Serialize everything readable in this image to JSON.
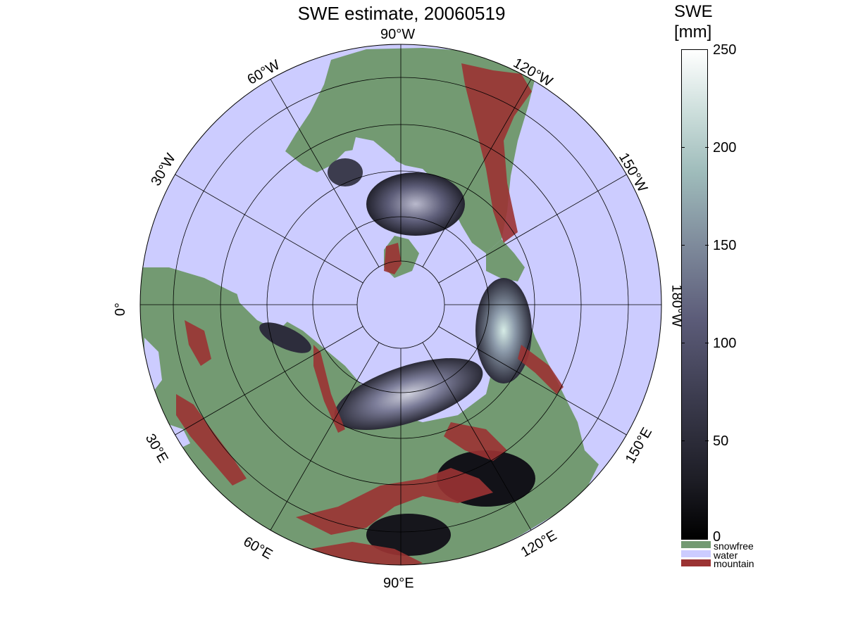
{
  "title": "SWE estimate, 20060519",
  "colorbar": {
    "title_line1": "SWE",
    "title_line2": "[mm]",
    "ticks": [
      "250",
      "200",
      "150",
      "100",
      "50",
      "0"
    ],
    "range": [
      0,
      250
    ],
    "categories": [
      {
        "label": "snowfree",
        "color": "#739a72"
      },
      {
        "label": "water",
        "color": "#ccccff"
      },
      {
        "label": "mountain",
        "color": "#9b3333"
      }
    ]
  },
  "map": {
    "projection": "north polar stereographic",
    "land_color": "#739a72",
    "water_color": "#ccccff",
    "mountain_color": "#9b3333",
    "longitude_labels": [
      "90°W",
      "120°W",
      "150°W",
      "180°W",
      "150°E",
      "120°E",
      "90°E",
      "60°E",
      "30°E",
      "0°",
      "30°W",
      "60°W"
    ]
  }
}
